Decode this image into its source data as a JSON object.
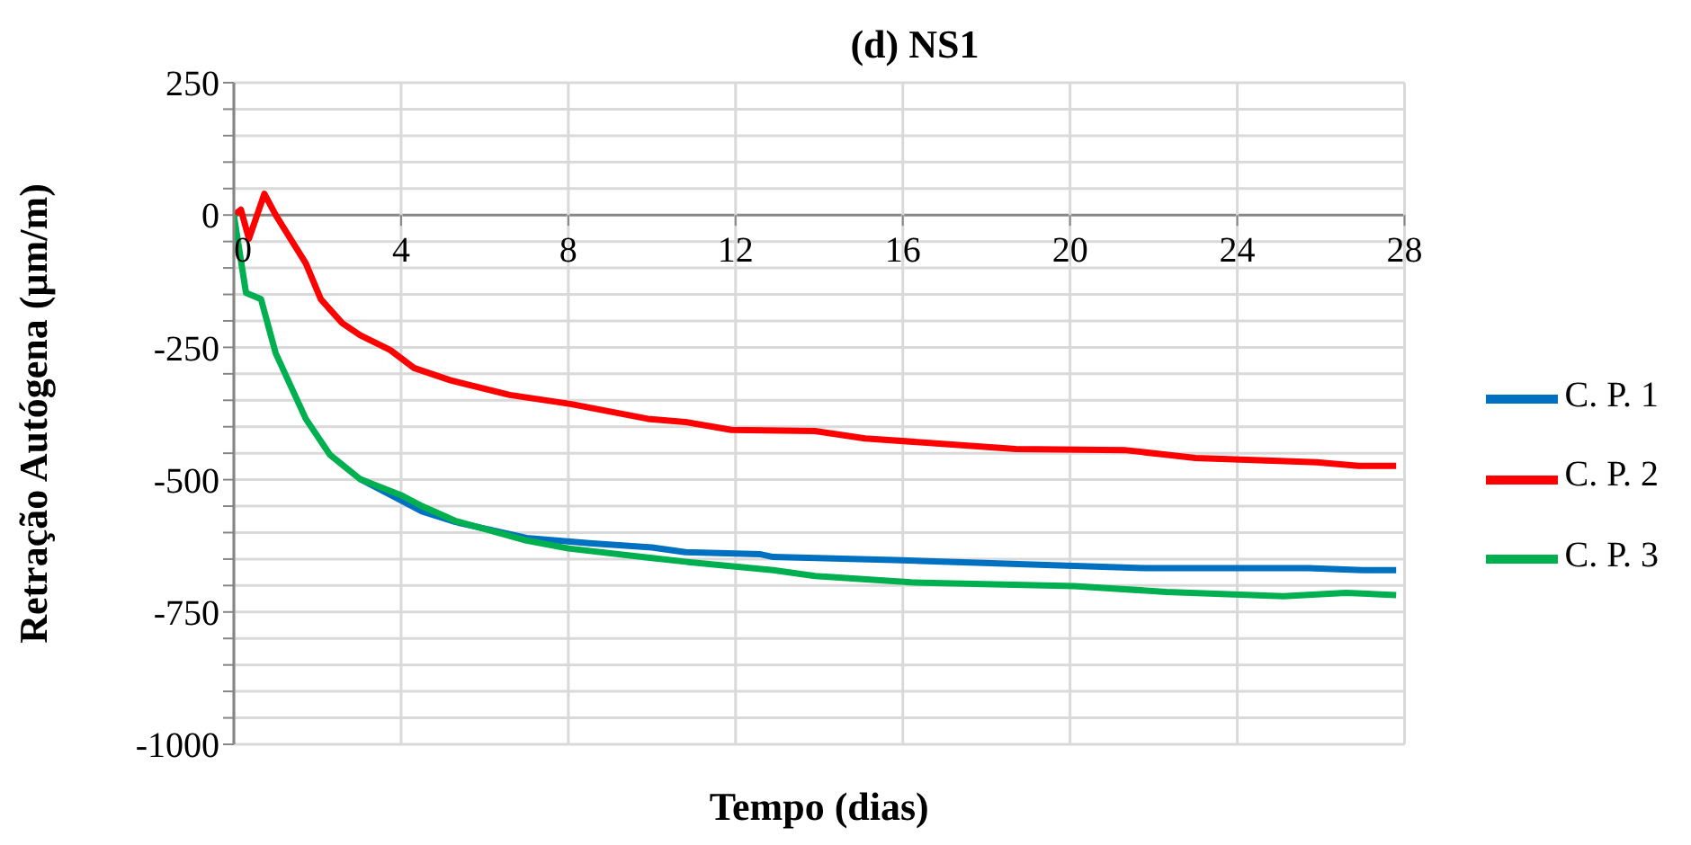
{
  "chart_data": {
    "type": "line",
    "title": "(d) NS1",
    "xlabel": "Tempo (dias)",
    "ylabel": "Retração Autógena (µm/m)",
    "xlim": [
      0,
      28
    ],
    "xticks": [
      0,
      4,
      8,
      12,
      16,
      20,
      24,
      28
    ],
    "ylim": [
      -1000,
      250
    ],
    "yticks": [
      250,
      {
        "value": 200,
        "label": null
      },
      {
        "value": 150,
        "label": null
      },
      {
        "value": 100,
        "label": null
      },
      {
        "value": 50,
        "label": null
      },
      0,
      {
        "value": -50,
        "label": null
      },
      {
        "value": -100,
        "label": null
      },
      {
        "value": -150,
        "label": null
      },
      {
        "value": -200,
        "label": null
      },
      -250,
      {
        "value": -300,
        "label": null
      },
      {
        "value": -350,
        "label": null
      },
      {
        "value": -400,
        "label": null
      },
      {
        "value": -450,
        "label": null
      },
      -500,
      {
        "value": -550,
        "label": null
      },
      {
        "value": -600,
        "label": null
      },
      {
        "value": -650,
        "label": null
      },
      {
        "value": -700,
        "label": null
      },
      -750,
      {
        "value": -800,
        "label": null
      },
      {
        "value": -850,
        "label": null
      },
      {
        "value": -900,
        "label": null
      },
      {
        "value": -950,
        "label": null
      },
      -1000
    ],
    "grid": true,
    "legend": "right",
    "marker": "none",
    "line_style": "solid",
    "series": [
      {
        "name": "C. P. 1",
        "color": "#0070c0",
        "x": [
          3.02,
          4.02,
          4.5,
          5.3,
          7,
          8.5,
          10,
          10.8,
          12.6,
          12.9,
          15.8,
          20.1,
          21.8,
          25.7,
          27.0,
          27.8
        ],
        "values": [
          -499,
          -540,
          -560,
          -580,
          -610,
          -620,
          -628,
          -637,
          -641,
          -646,
          -652,
          -663,
          -667,
          -667,
          -671,
          -671
        ]
      },
      {
        "name": "C. P. 2",
        "color": "#ff0000",
        "x": [
          0,
          0.17,
          0.36,
          0.73,
          1.0,
          1.72,
          2.08,
          2.59,
          3.02,
          3.74,
          4.31,
          5.17,
          6.6,
          8.05,
          9.9,
          10.8,
          11.9,
          13.9,
          15.1,
          18.7,
          21.3,
          23.0,
          25.9,
          26.9,
          27.8
        ],
        "values": [
          0,
          10,
          -45,
          40,
          0,
          -91,
          -159,
          -204,
          -227,
          -255,
          -289,
          -312,
          -340,
          -357,
          -385,
          -391,
          -406,
          -408,
          -422,
          -442,
          -444,
          -459,
          -467,
          -474,
          -474
        ]
      },
      {
        "name": "C. P. 3",
        "color": "#00b050",
        "x": [
          0,
          0.29,
          0.65,
          1.0,
          1.72,
          2.3,
          3.02,
          4.02,
          4.5,
          5.3,
          7,
          8,
          10,
          10.8,
          12.9,
          13.9,
          16.2,
          20.1,
          22.3,
          25.1,
          26.6,
          27.8
        ],
        "values": [
          0,
          -147,
          -159,
          -261,
          -385,
          -453,
          -499,
          -530,
          -550,
          -578,
          -615,
          -630,
          -648,
          -655,
          -671,
          -682,
          -694,
          -701,
          -712,
          -720,
          -714,
          -718
        ]
      }
    ]
  }
}
